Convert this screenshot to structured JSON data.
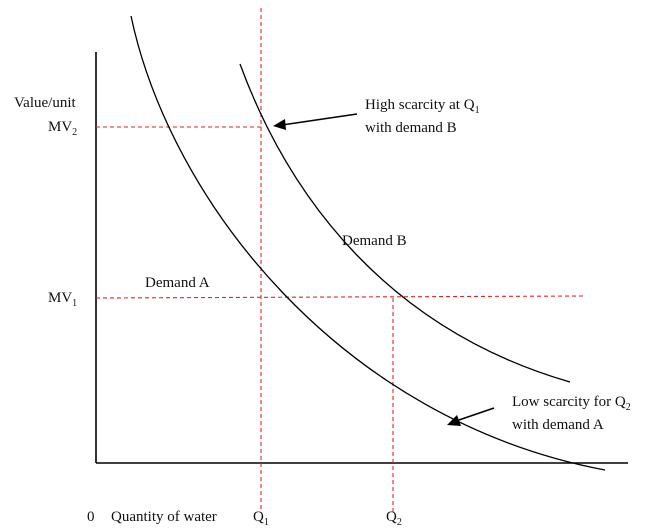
{
  "axes": {
    "y_label": "Value/unit",
    "x_label": "Quantity of water",
    "origin_label": "0"
  },
  "y_ticks": [
    {
      "main": "MV",
      "sub": "2"
    },
    {
      "main": "MV",
      "sub": "1"
    }
  ],
  "x_ticks": [
    {
      "main": "Q",
      "sub": "1"
    },
    {
      "main": "Q",
      "sub": "2"
    }
  ],
  "curves": {
    "demand_a": "Demand A",
    "demand_b": "Demand B"
  },
  "annotations": {
    "high": {
      "line1_prefix": "High scarcity at Q",
      "line1_sub": "1",
      "line2": "with demand B"
    },
    "low": {
      "line1_prefix": "Low scarcity for Q",
      "line1_sub": "2",
      "line2": "with demand A"
    }
  },
  "colors": {
    "guide_lines": "#e32626",
    "curves": "#000000"
  }
}
